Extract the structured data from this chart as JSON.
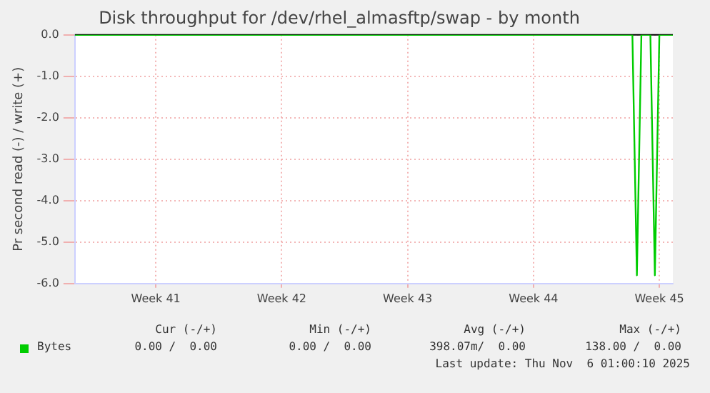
{
  "chart_data": {
    "type": "line",
    "title": "Disk throughput for /dev/rhel_almasftp/swap - by month",
    "ylabel": "Pr second read (-) / write (+)",
    "categories": [
      null,
      null,
      null,
      null,
      null,
      null,
      null,
      null,
      null,
      null,
      null,
      null,
      null,
      null,
      null,
      null,
      null,
      null,
      "Week 41",
      null,
      null,
      null,
      null,
      null,
      null,
      null,
      null,
      null,
      null,
      null,
      null,
      null,
      null,
      null,
      null,
      null,
      null,
      null,
      null,
      null,
      null,
      null,
      null,
      null,
      null,
      null,
      "Week 42",
      null,
      null,
      null,
      null,
      null,
      null,
      null,
      null,
      null,
      null,
      null,
      null,
      null,
      null,
      null,
      null,
      null,
      null,
      null,
      null,
      null,
      null,
      null,
      null,
      null,
      null,
      null,
      "Week 43",
      null,
      null,
      null,
      null,
      null,
      null,
      null,
      null,
      null,
      null,
      null,
      null,
      null,
      null,
      null,
      null,
      null,
      null,
      null,
      null,
      null,
      null,
      null,
      null,
      null,
      null,
      null,
      "Week 44",
      null,
      null,
      null,
      null,
      null,
      null,
      null,
      null,
      null,
      null,
      null,
      null,
      null,
      null,
      null,
      null,
      null,
      null,
      null,
      null,
      null,
      null,
      null,
      null,
      null,
      null,
      null,
      "Week 45",
      null,
      null,
      null
    ],
    "series": [
      {
        "name": "Bytes",
        "color": "#00cc00",
        "values": [
          0,
          0,
          0,
          0,
          0,
          0,
          0,
          0,
          0,
          0,
          0,
          0,
          0,
          0,
          0,
          0,
          0,
          0,
          0,
          0,
          0,
          0,
          0,
          0,
          0,
          0,
          0,
          0,
          0,
          0,
          0,
          0,
          0,
          0,
          0,
          0,
          0,
          0,
          0,
          0,
          0,
          0,
          0,
          0,
          0,
          0,
          0,
          0,
          0,
          0,
          0,
          0,
          0,
          0,
          0,
          0,
          0,
          0,
          0,
          0,
          0,
          0,
          0,
          0,
          0,
          0,
          0,
          0,
          0,
          0,
          0,
          0,
          0,
          0,
          0,
          0,
          0,
          0,
          0,
          0,
          0,
          0,
          0,
          0,
          0,
          0,
          0,
          0,
          0,
          0,
          0,
          0,
          0,
          0,
          0,
          0,
          0,
          0,
          0,
          0,
          0,
          0,
          0,
          0,
          0,
          0,
          0,
          0,
          0,
          0,
          0,
          0,
          0,
          0,
          0,
          0,
          0,
          0,
          0,
          0,
          0,
          0,
          0,
          0,
          0,
          -5.8,
          0,
          0,
          0,
          -5.8,
          0,
          0,
          0,
          0
        ]
      }
    ],
    "ylim": [
      -6,
      0
    ],
    "yticks": [
      {
        "value": -6,
        "label": "-6.0"
      },
      {
        "value": -5,
        "label": "-5.0"
      },
      {
        "value": -4,
        "label": "-4.0"
      },
      {
        "value": -3,
        "label": "-3.0"
      },
      {
        "value": -2,
        "label": "-2.0"
      },
      {
        "value": -1,
        "label": "-1.0"
      },
      {
        "value": 0,
        "label": "0.0"
      }
    ],
    "grid": true,
    "legend": "bottom",
    "marker": "none",
    "line_style": "solid",
    "annotations": [
      "Cur (-/+)",
      "Min (-/+)",
      "Avg (-/+)",
      "Max (-/+)",
      "0.00 /  0.00",
      "0.00 /  0.00",
      "398.07m/  0.00",
      "138.00 /  0.00",
      "Last update: Thu Nov  6 01:00:10 2025"
    ]
  }
}
